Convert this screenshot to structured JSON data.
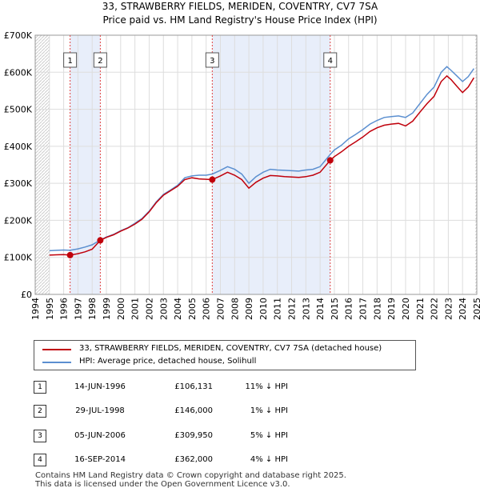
{
  "chart_data": {
    "type": "line",
    "title": "33, STRAWBERRY FIELDS, MERIDEN, COVENTRY, CV7 7SA",
    "subtitle": "Price paid vs. HM Land Registry's House Price Index (HPI)",
    "xlabel": "",
    "ylabel": "",
    "xlim": [
      1994,
      2025
    ],
    "ylim": [
      0,
      700000
    ],
    "y_ticks": [
      {
        "value": 0,
        "label": "£0"
      },
      {
        "value": 100000,
        "label": "£100K"
      },
      {
        "value": 200000,
        "label": "£200K"
      },
      {
        "value": 300000,
        "label": "£300K"
      },
      {
        "value": 400000,
        "label": "£400K"
      },
      {
        "value": 500000,
        "label": "£500K"
      },
      {
        "value": 600000,
        "label": "£600K"
      },
      {
        "value": 700000,
        "label": "£700K"
      }
    ],
    "x_ticks": [
      "1994",
      "1995",
      "1996",
      "1997",
      "1998",
      "1999",
      "2000",
      "2001",
      "2002",
      "2003",
      "2004",
      "2005",
      "2006",
      "2007",
      "2008",
      "2009",
      "2010",
      "2011",
      "2012",
      "2013",
      "2014",
      "2015",
      "2016",
      "2017",
      "2018",
      "2019",
      "2020",
      "2021",
      "2022",
      "2023",
      "2024",
      "2025"
    ],
    "grid": true,
    "series": [
      {
        "name": "HPI: Average price, detached house, Solihull",
        "color": "#5b8fd0",
        "points": [
          [
            1995.0,
            118000
          ],
          [
            1995.5,
            119000
          ],
          [
            1996.0,
            120000
          ],
          [
            1996.45,
            119000
          ],
          [
            1997.0,
            123000
          ],
          [
            1997.5,
            128000
          ],
          [
            1998.0,
            134000
          ],
          [
            1998.57,
            147000
          ],
          [
            1999.0,
            155000
          ],
          [
            1999.5,
            162000
          ],
          [
            2000.0,
            172000
          ],
          [
            2000.5,
            180000
          ],
          [
            2001.0,
            192000
          ],
          [
            2001.5,
            205000
          ],
          [
            2002.0,
            225000
          ],
          [
            2002.5,
            250000
          ],
          [
            2003.0,
            270000
          ],
          [
            2003.5,
            282000
          ],
          [
            2004.0,
            295000
          ],
          [
            2004.5,
            315000
          ],
          [
            2005.0,
            320000
          ],
          [
            2005.5,
            322000
          ],
          [
            2006.0,
            322000
          ],
          [
            2006.43,
            325000
          ],
          [
            2007.0,
            335000
          ],
          [
            2007.5,
            345000
          ],
          [
            2008.0,
            338000
          ],
          [
            2008.5,
            325000
          ],
          [
            2009.0,
            300000
          ],
          [
            2009.5,
            318000
          ],
          [
            2010.0,
            330000
          ],
          [
            2010.5,
            338000
          ],
          [
            2011.0,
            336000
          ],
          [
            2011.5,
            335000
          ],
          [
            2012.0,
            334000
          ],
          [
            2012.5,
            333000
          ],
          [
            2013.0,
            336000
          ],
          [
            2013.5,
            338000
          ],
          [
            2014.0,
            345000
          ],
          [
            2014.71,
            378000
          ],
          [
            2015.0,
            390000
          ],
          [
            2015.5,
            403000
          ],
          [
            2016.0,
            420000
          ],
          [
            2016.5,
            432000
          ],
          [
            2017.0,
            445000
          ],
          [
            2017.5,
            460000
          ],
          [
            2018.0,
            470000
          ],
          [
            2018.5,
            478000
          ],
          [
            2019.0,
            480000
          ],
          [
            2019.5,
            482000
          ],
          [
            2020.0,
            478000
          ],
          [
            2020.5,
            490000
          ],
          [
            2021.0,
            515000
          ],
          [
            2021.5,
            540000
          ],
          [
            2022.0,
            560000
          ],
          [
            2022.5,
            600000
          ],
          [
            2022.9,
            615000
          ],
          [
            2023.2,
            605000
          ],
          [
            2023.6,
            590000
          ],
          [
            2024.0,
            575000
          ],
          [
            2024.4,
            588000
          ],
          [
            2024.8,
            610000
          ]
        ]
      },
      {
        "name": "33, STRAWBERRY FIELDS, MERIDEN, COVENTRY, CV7 7SA (detached house)",
        "color": "#c0000b",
        "points": [
          [
            1995.0,
            106000
          ],
          [
            1995.5,
            107000
          ],
          [
            1996.0,
            107500
          ],
          [
            1996.45,
            106131
          ],
          [
            1997.0,
            110000
          ],
          [
            1997.5,
            115000
          ],
          [
            1998.0,
            122000
          ],
          [
            1998.57,
            146000
          ],
          [
            1999.0,
            154000
          ],
          [
            1999.5,
            161000
          ],
          [
            2000.0,
            171000
          ],
          [
            2000.5,
            179000
          ],
          [
            2001.0,
            190000
          ],
          [
            2001.5,
            203000
          ],
          [
            2002.0,
            223000
          ],
          [
            2002.5,
            248000
          ],
          [
            2003.0,
            268000
          ],
          [
            2003.5,
            280000
          ],
          [
            2004.0,
            292000
          ],
          [
            2004.5,
            310000
          ],
          [
            2005.0,
            315000
          ],
          [
            2005.5,
            312000
          ],
          [
            2006.0,
            311000
          ],
          [
            2006.43,
            309950
          ],
          [
            2007.0,
            320000
          ],
          [
            2007.5,
            330000
          ],
          [
            2008.0,
            322000
          ],
          [
            2008.5,
            310000
          ],
          [
            2009.0,
            287000
          ],
          [
            2009.5,
            303000
          ],
          [
            2010.0,
            314000
          ],
          [
            2010.5,
            321000
          ],
          [
            2011.0,
            320000
          ],
          [
            2011.5,
            318000
          ],
          [
            2012.0,
            317000
          ],
          [
            2012.5,
            316000
          ],
          [
            2013.0,
            318000
          ],
          [
            2013.5,
            322000
          ],
          [
            2014.0,
            330000
          ],
          [
            2014.71,
            362000
          ],
          [
            2015.0,
            372000
          ],
          [
            2015.5,
            385000
          ],
          [
            2016.0,
            400000
          ],
          [
            2016.5,
            412000
          ],
          [
            2017.0,
            425000
          ],
          [
            2017.5,
            440000
          ],
          [
            2018.0,
            450000
          ],
          [
            2018.5,
            457000
          ],
          [
            2019.0,
            460000
          ],
          [
            2019.5,
            462000
          ],
          [
            2020.0,
            455000
          ],
          [
            2020.5,
            468000
          ],
          [
            2021.0,
            492000
          ],
          [
            2021.5,
            515000
          ],
          [
            2022.0,
            535000
          ],
          [
            2022.5,
            575000
          ],
          [
            2022.9,
            590000
          ],
          [
            2023.2,
            580000
          ],
          [
            2023.6,
            562000
          ],
          [
            2024.0,
            545000
          ],
          [
            2024.4,
            560000
          ],
          [
            2024.8,
            585000
          ]
        ]
      }
    ],
    "sales": [
      {
        "num": "1",
        "x": 1996.45,
        "y": 106131
      },
      {
        "num": "2",
        "x": 1998.57,
        "y": 146000
      },
      {
        "num": "3",
        "x": 2006.43,
        "y": 309950
      },
      {
        "num": "4",
        "x": 2014.71,
        "y": 362000
      }
    ],
    "shaded_spans": [
      [
        1996.45,
        1998.57
      ],
      [
        2006.43,
        2014.71
      ]
    ]
  },
  "legend": {
    "items": [
      {
        "label": "33, STRAWBERRY FIELDS, MERIDEN, COVENTRY, CV7 7SA (detached house)",
        "color": "#c0000b"
      },
      {
        "label": "HPI: Average price, detached house, Solihull",
        "color": "#5b8fd0"
      }
    ]
  },
  "transactions": [
    {
      "num": "1",
      "date": "14-JUN-1996",
      "price": "£106,131",
      "hpi": "11% ↓ HPI"
    },
    {
      "num": "2",
      "date": "29-JUL-1998",
      "price": "£146,000",
      "hpi": "1% ↓ HPI"
    },
    {
      "num": "3",
      "date": "05-JUN-2006",
      "price": "£309,950",
      "hpi": "5% ↓ HPI"
    },
    {
      "num": "4",
      "date": "16-SEP-2014",
      "price": "£362,000",
      "hpi": "4% ↓ HPI"
    }
  ],
  "footer": {
    "line1": "Contains HM Land Registry data © Crown copyright and database right 2025.",
    "line2": "This data is licensed under the Open Government Licence v3.0."
  }
}
